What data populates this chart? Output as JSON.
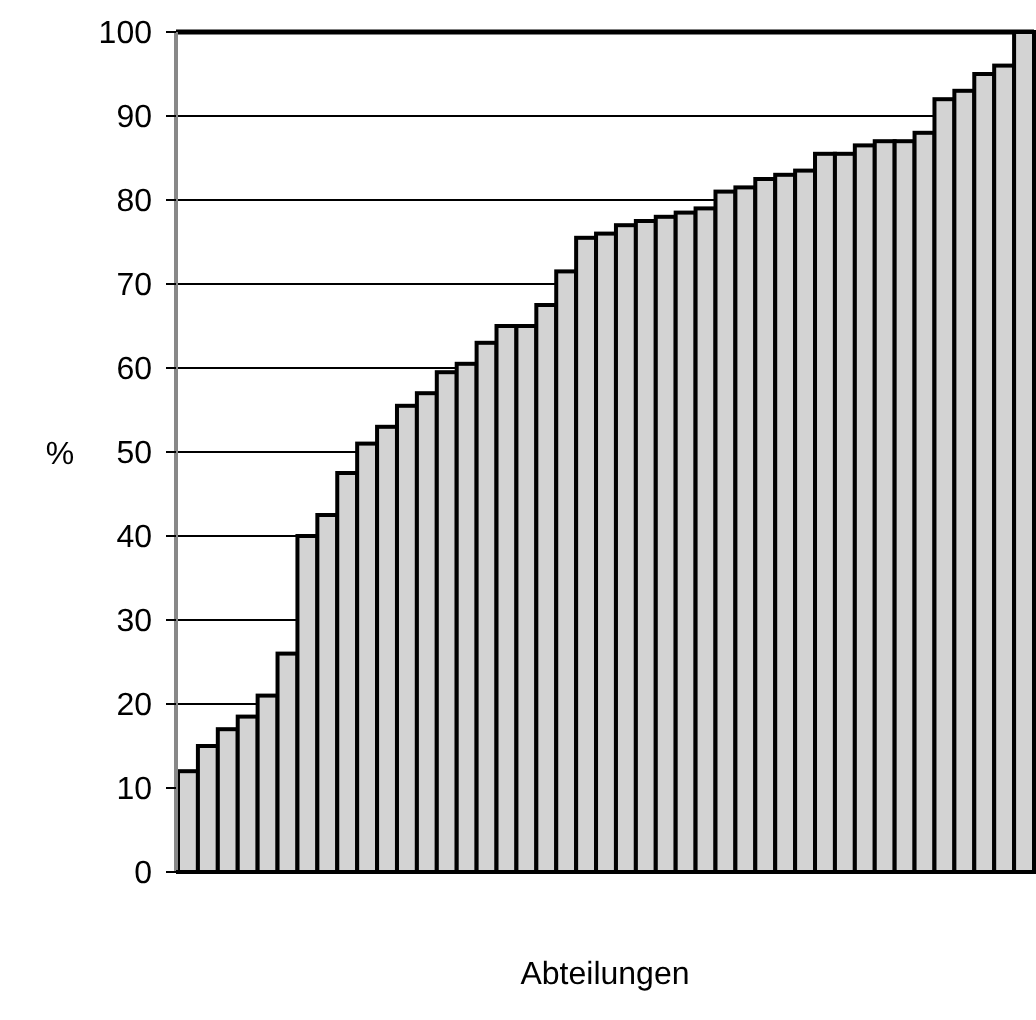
{
  "chart_data": {
    "type": "bar",
    "xlabel": "Abteilungen",
    "ylabel": "%",
    "categories": [
      null,
      null,
      null,
      null,
      null,
      null,
      null,
      null,
      null,
      null,
      null,
      null,
      null,
      null,
      null,
      null,
      null,
      null,
      null,
      null,
      null,
      null,
      null,
      null,
      null,
      null,
      null,
      null,
      null,
      null,
      null,
      null,
      null,
      null,
      null,
      null,
      null,
      null,
      null,
      null,
      null,
      null,
      null
    ],
    "values": [
      12,
      15,
      17,
      18.5,
      21,
      26,
      40,
      42.5,
      47.5,
      51,
      53,
      55.5,
      57,
      59.5,
      60.5,
      63,
      65,
      65,
      67.5,
      71.5,
      75.5,
      76,
      77,
      77.5,
      78,
      78.5,
      79,
      81,
      81.5,
      82.5,
      83,
      83.5,
      85.5,
      85.5,
      86.5,
      87,
      87,
      88,
      92,
      93,
      95,
      96,
      100
    ],
    "color": "#d3d3d3",
    "ylim": [
      0,
      100
    ],
    "yticks": [
      0,
      10,
      20,
      30,
      40,
      50,
      60,
      70,
      80,
      90,
      100
    ],
    "grid": "y"
  }
}
